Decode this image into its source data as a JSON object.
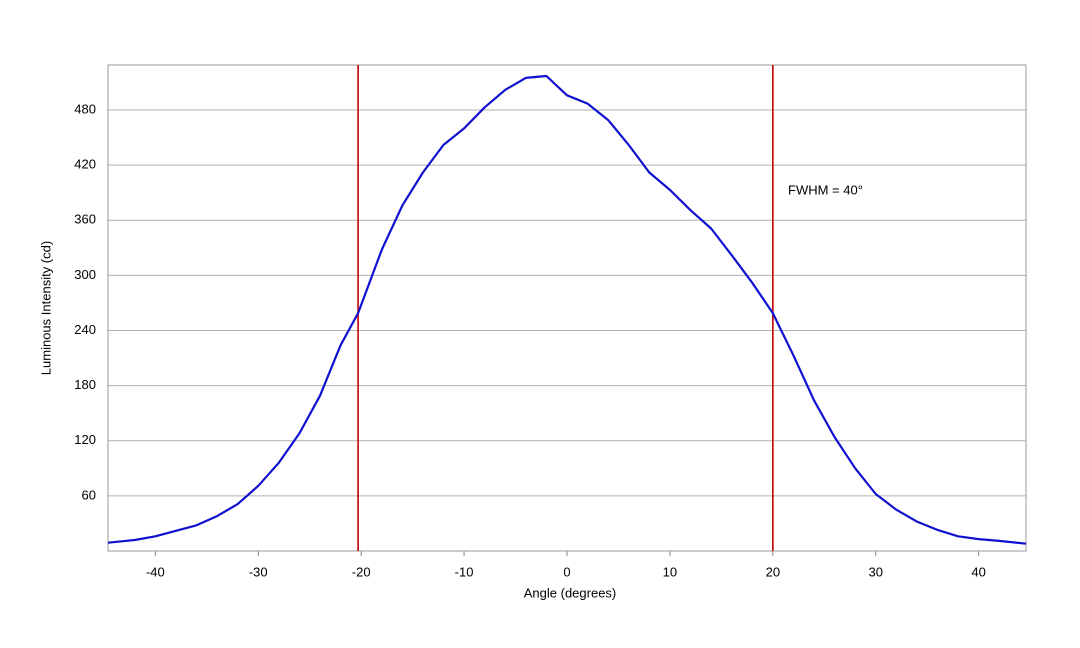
{
  "chart_data": {
    "type": "line",
    "x_label": "Angle (degrees)",
    "y_label": "Luminous Intensity (cd)",
    "x": [
      -44.6,
      -42,
      -40,
      -38,
      -36,
      -34,
      -32,
      -30,
      -28,
      -26,
      -24,
      -22,
      -20.3,
      -18,
      -16,
      -14,
      -12,
      -10,
      -8,
      -6,
      -4,
      -2,
      0,
      2,
      4,
      6,
      8,
      10,
      12,
      14,
      16,
      18,
      20,
      22,
      24,
      26,
      28,
      30,
      32,
      34,
      36,
      38,
      40,
      42,
      44.6
    ],
    "series": [
      {
        "name": "Luminous Intensity",
        "color": "#1010d0",
        "values": [
          9,
          12,
          16,
          22,
          28,
          38,
          51,
          71,
          96,
          128,
          169,
          224,
          259,
          328,
          376,
          412,
          442,
          460,
          483,
          502,
          515,
          517,
          496,
          487,
          469,
          442,
          412,
          393,
          371,
          351,
          322,
          292,
          259,
          213,
          164,
          124,
          90,
          62,
          45,
          32,
          23,
          16,
          13,
          11,
          8
        ]
      }
    ],
    "vlines": {
      "color": "#c00000",
      "values": [
        -20.3,
        20
      ]
    },
    "annotation": "FWHM = 40°",
    "xlim": [
      -44.6,
      44.6
    ],
    "ylim": [
      0,
      529
    ],
    "xticks": [
      -40,
      -30,
      -20,
      -10,
      0,
      10,
      20,
      30,
      40
    ],
    "yticks": [
      60,
      120,
      180,
      240,
      300,
      360,
      420,
      480
    ],
    "grid": true
  }
}
